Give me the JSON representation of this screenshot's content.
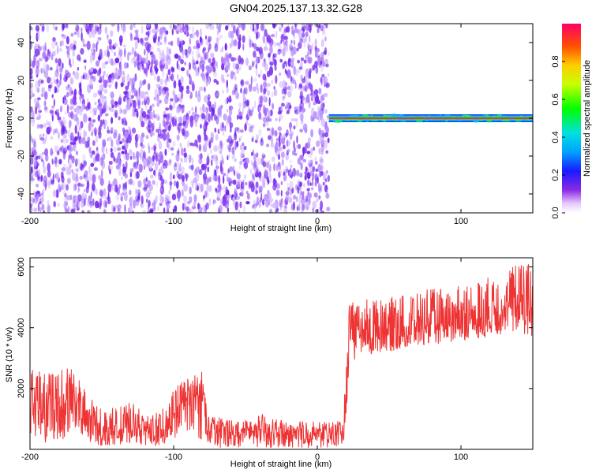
{
  "title": "GN04.2025.137.13.32.G28",
  "colors": {
    "snr_line": "#ee3333",
    "noise": "#7a2bf0",
    "axis": "#000000"
  },
  "chart_data": [
    {
      "type": "heatmap",
      "title": "",
      "xlabel": "Height of straight line (km)",
      "ylabel": "Frequency (Hz)",
      "xlim": [
        -200,
        150
      ],
      "ylim": [
        -50,
        50
      ],
      "xticks": [
        -200,
        -100,
        0,
        100
      ],
      "xtick_labels": [
        "-200",
        "-100",
        "0",
        "100"
      ],
      "yticks": [
        -40,
        -20,
        0,
        20,
        40
      ],
      "ytick_labels": [
        "-40",
        "-20",
        "0",
        "20",
        "40"
      ],
      "grid": false,
      "colorbar": {
        "label": "Normalized spectral amplitude",
        "range": [
          0,
          1
        ],
        "ticks": [
          0.0,
          0.2,
          0.4,
          0.6,
          0.8
        ],
        "tick_labels": [
          "0.0",
          "0.2",
          "0.4",
          "0.6",
          "0.8"
        ],
        "colormap": "rainbow"
      },
      "regions": [
        {
          "x_from": -200,
          "x_to": 8,
          "freq_hz": "broadband",
          "amplitude": 0.2
        },
        {
          "x_from": 8,
          "x_to": 150,
          "freq_hz": 0,
          "amplitude": 1.0
        }
      ]
    },
    {
      "type": "line",
      "title": "",
      "xlabel": "Height of straight line (km)",
      "ylabel": "SNR (10 * v/v)",
      "xlim": [
        -200,
        150
      ],
      "ylim": [
        0,
        6300
      ],
      "xticks": [
        -200,
        -100,
        0,
        100
      ],
      "xtick_labels": [
        "-200",
        "-100",
        "0",
        "100"
      ],
      "yticks": [
        2000,
        4000,
        6000
      ],
      "ytick_labels": [
        "2000",
        "4000",
        "6000"
      ],
      "grid": false,
      "series": [
        {
          "x": [
            -200,
            -190,
            -180,
            -170,
            -160,
            -150,
            -140,
            -130,
            -120,
            -110,
            -100,
            -90,
            -80,
            -76,
            -70,
            -60,
            -50,
            -40,
            -30,
            -20,
            -10,
            0,
            10,
            18,
            20,
            22,
            30,
            40,
            50,
            60,
            70,
            80,
            90,
            100,
            110,
            120,
            130,
            140,
            150
          ],
          "y_low": [
            300,
            200,
            300,
            400,
            150,
            100,
            150,
            200,
            100,
            100,
            300,
            400,
            300,
            100,
            50,
            50,
            50,
            50,
            50,
            50,
            50,
            50,
            50,
            50,
            900,
            2800,
            3000,
            3100,
            3200,
            3300,
            3400,
            3500,
            3400,
            3600,
            3600,
            3700,
            3800,
            3900,
            3600
          ],
          "y_mid": [
            1500,
            1300,
            1400,
            1700,
            900,
            600,
            600,
            800,
            600,
            600,
            1200,
            1600,
            1800,
            700,
            600,
            550,
            550,
            600,
            550,
            500,
            550,
            500,
            500,
            550,
            2000,
            3800,
            3800,
            3900,
            4000,
            3900,
            4000,
            4200,
            4100,
            4200,
            4300,
            4500,
            4600,
            4800,
            4700
          ],
          "y_high": [
            2700,
            2500,
            2600,
            2800,
            1800,
            1300,
            1400,
            1600,
            1200,
            1200,
            2000,
            2400,
            2600,
            1100,
            1100,
            1000,
            1000,
            1200,
            1000,
            900,
            1000,
            900,
            900,
            1000,
            3100,
            4800,
            4900,
            5000,
            5000,
            5100,
            5200,
            5300,
            5300,
            5400,
            5500,
            5700,
            5900,
            6200,
            6100
          ]
        }
      ]
    }
  ]
}
